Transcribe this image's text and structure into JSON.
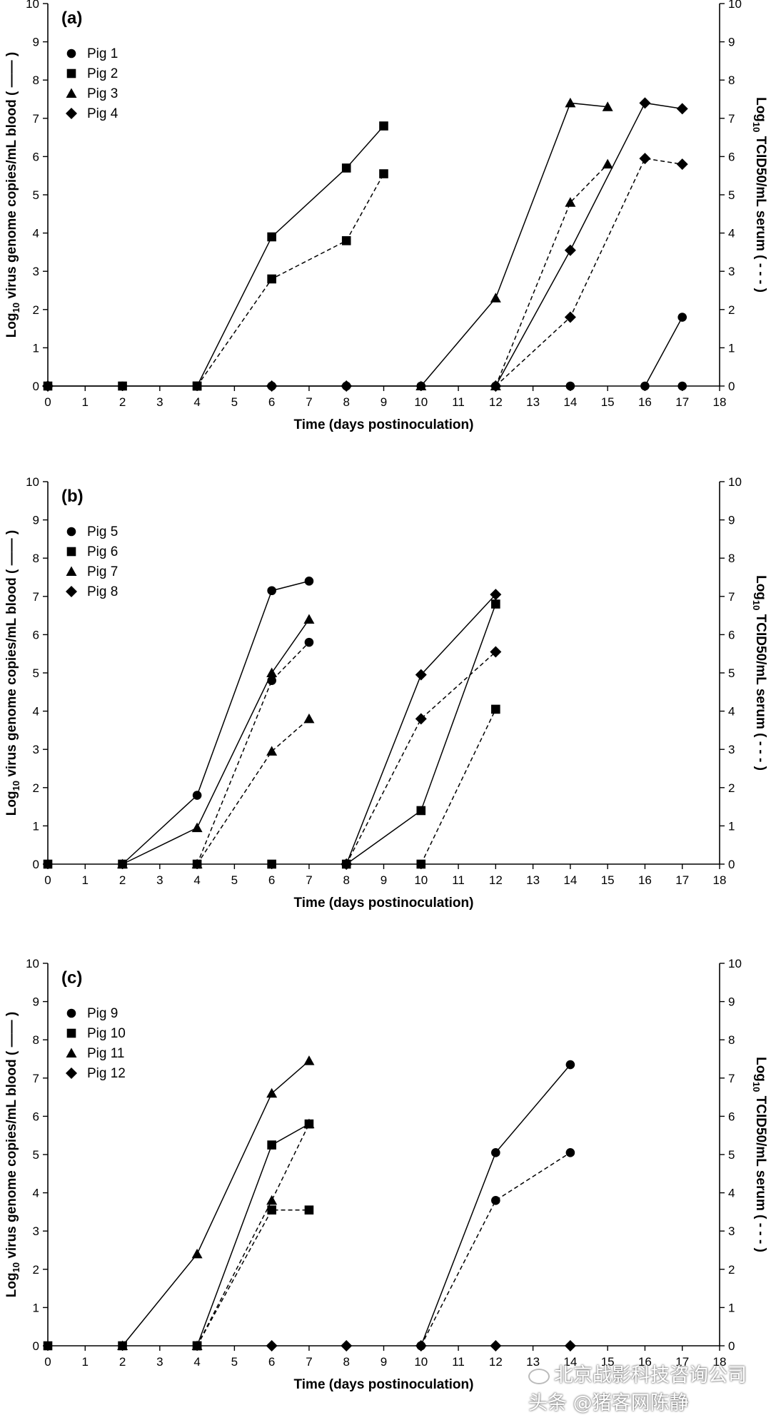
{
  "watermark": {
    "top_text": "北京战影科技咨询公司",
    "bottom_text": "头条 @猪客网陈静"
  },
  "chart_data": [
    {
      "type": "line",
      "panel_label": "(a)",
      "xlabel": "Time (days postinoculation)",
      "ylabel_left_prefix": "Log",
      "ylabel_left_sub": "10",
      "ylabel_left_main": " virus genome copies/mL blood ( —— )",
      "ylabel_right_prefix": "Log",
      "ylabel_right_sub": "10",
      "ylabel_right_main": " TCID50/mL serum ( - - - )",
      "xlim": [
        0,
        18
      ],
      "ylim": [
        0,
        10
      ],
      "xticks": [
        "0",
        "1",
        "2",
        "3",
        "4",
        "5",
        "6",
        "7",
        "8",
        "9",
        "10",
        "11",
        "12",
        "13",
        "14",
        "15",
        "16",
        "17",
        "18"
      ],
      "yticks": [
        "0",
        "1",
        "2",
        "3",
        "4",
        "5",
        "6",
        "7",
        "8",
        "9",
        "10"
      ],
      "legend": [
        {
          "name": "Pig 1",
          "marker": "circle"
        },
        {
          "name": "Pig 2",
          "marker": "square"
        },
        {
          "name": "Pig 3",
          "marker": "triangle"
        },
        {
          "name": "Pig 4",
          "marker": "diamond"
        }
      ],
      "series": [
        {
          "name": "Pig 1",
          "marker": "circle",
          "style": "solid",
          "points": [
            [
              0,
              0
            ],
            [
              2,
              0
            ],
            [
              4,
              0
            ],
            [
              6,
              0
            ],
            [
              8,
              0
            ],
            [
              10,
              0
            ],
            [
              12,
              0
            ],
            [
              14,
              0
            ]
          ]
        },
        {
          "name": "Pig 1",
          "marker": "circle",
          "style": "solid",
          "points": [
            [
              16,
              0
            ],
            [
              17,
              1.8
            ]
          ]
        },
        {
          "name": "Pig 1",
          "marker": "circle",
          "style": "marker-only",
          "points": [
            [
              17,
              0
            ]
          ]
        },
        {
          "name": "Pig 2",
          "marker": "square",
          "style": "solid",
          "points": [
            [
              4,
              0
            ],
            [
              6,
              3.9
            ],
            [
              8,
              5.7
            ],
            [
              9,
              6.8
            ]
          ]
        },
        {
          "name": "Pig 2",
          "marker": "square",
          "style": "dashed",
          "points": [
            [
              4,
              0
            ],
            [
              6,
              2.8
            ],
            [
              8,
              3.8
            ],
            [
              9,
              5.55
            ]
          ]
        },
        {
          "name": "Pig 2",
          "marker": "square",
          "style": "marker-only",
          "points": [
            [
              0,
              0
            ],
            [
              2,
              0
            ]
          ]
        },
        {
          "name": "Pig 3",
          "marker": "triangle",
          "style": "solid",
          "points": [
            [
              10,
              0
            ],
            [
              12,
              2.3
            ],
            [
              14,
              7.4
            ],
            [
              15,
              7.3
            ]
          ]
        },
        {
          "name": "Pig 3",
          "marker": "triangle",
          "style": "dashed",
          "points": [
            [
              12,
              0
            ],
            [
              14,
              4.8
            ],
            [
              15,
              5.8
            ]
          ]
        },
        {
          "name": "Pig 4",
          "marker": "diamond",
          "style": "solid",
          "points": [
            [
              12,
              0
            ],
            [
              14,
              3.55
            ],
            [
              16,
              7.4
            ],
            [
              17,
              7.25
            ]
          ]
        },
        {
          "name": "Pig 4",
          "marker": "diamond",
          "style": "dashed",
          "points": [
            [
              12,
              0
            ],
            [
              14,
              1.8
            ],
            [
              16,
              5.95
            ],
            [
              17,
              5.8
            ]
          ]
        },
        {
          "name": "Pig 4",
          "marker": "diamond",
          "style": "marker-only",
          "points": [
            [
              0,
              0
            ],
            [
              6,
              0
            ],
            [
              8,
              0
            ]
          ]
        }
      ]
    },
    {
      "type": "line",
      "panel_label": "(b)",
      "xlabel": "Time (days postinoculation)",
      "ylabel_left_prefix": "Log",
      "ylabel_left_sub": "10",
      "ylabel_left_main": " virus genome copies/mL blood ( —— )",
      "ylabel_right_prefix": "Log",
      "ylabel_right_sub": "10",
      "ylabel_right_main": " TCID50/mL serum ( - - - )",
      "xlim": [
        0,
        18
      ],
      "ylim": [
        0,
        10
      ],
      "xticks": [
        "0",
        "1",
        "2",
        "3",
        "4",
        "5",
        "6",
        "7",
        "8",
        "9",
        "10",
        "11",
        "12",
        "13",
        "14",
        "15",
        "16",
        "17",
        "18"
      ],
      "yticks": [
        "0",
        "1",
        "2",
        "3",
        "4",
        "5",
        "6",
        "7",
        "8",
        "9",
        "10"
      ],
      "legend": [
        {
          "name": "Pig 5",
          "marker": "circle"
        },
        {
          "name": "Pig 6",
          "marker": "square"
        },
        {
          "name": "Pig 7",
          "marker": "triangle"
        },
        {
          "name": "Pig 8",
          "marker": "diamond"
        }
      ],
      "series": [
        {
          "name": "Pig 5",
          "marker": "circle",
          "style": "solid",
          "points": [
            [
              2,
              0
            ],
            [
              4,
              1.8
            ],
            [
              6,
              7.15
            ],
            [
              7,
              7.4
            ]
          ]
        },
        {
          "name": "Pig 5",
          "marker": "circle",
          "style": "dashed",
          "points": [
            [
              4,
              0
            ],
            [
              6,
              4.8
            ],
            [
              7,
              5.8
            ]
          ]
        },
        {
          "name": "Pig 5",
          "marker": "circle",
          "style": "marker-only",
          "points": [
            [
              0,
              0
            ]
          ]
        },
        {
          "name": "Pig 6",
          "marker": "square",
          "style": "solid",
          "points": [
            [
              8,
              0
            ],
            [
              10,
              1.4
            ],
            [
              12,
              6.8
            ]
          ]
        },
        {
          "name": "Pig 6",
          "marker": "square",
          "style": "dashed",
          "points": [
            [
              10,
              0
            ],
            [
              12,
              4.05
            ]
          ]
        },
        {
          "name": "Pig 6",
          "marker": "square",
          "style": "marker-only",
          "points": [
            [
              0,
              0
            ],
            [
              2,
              0
            ],
            [
              4,
              0
            ],
            [
              6,
              0
            ]
          ]
        },
        {
          "name": "Pig 7",
          "marker": "triangle",
          "style": "solid",
          "points": [
            [
              2,
              0
            ],
            [
              4,
              0.95
            ],
            [
              6,
              5.0
            ],
            [
              7,
              6.4
            ]
          ]
        },
        {
          "name": "Pig 7",
          "marker": "triangle",
          "style": "dashed",
          "points": [
            [
              4,
              0
            ],
            [
              6,
              2.95
            ],
            [
              7,
              3.8
            ]
          ]
        },
        {
          "name": "Pig 8",
          "marker": "diamond",
          "style": "solid",
          "points": [
            [
              8,
              0
            ],
            [
              10,
              4.95
            ],
            [
              12,
              7.05
            ]
          ]
        },
        {
          "name": "Pig 8",
          "marker": "diamond",
          "style": "dashed",
          "points": [
            [
              8,
              0
            ],
            [
              10,
              3.8
            ],
            [
              12,
              5.55
            ]
          ]
        }
      ]
    },
    {
      "type": "line",
      "panel_label": "(c)",
      "xlabel": "Time (days postinoculation)",
      "ylabel_left_prefix": "Log",
      "ylabel_left_sub": "10",
      "ylabel_left_main": " virus genome copies/mL blood ( —— )",
      "ylabel_right_prefix": "Log",
      "ylabel_right_sub": "10",
      "ylabel_right_main": " TCID50/mL serum ( - - - )",
      "xlim": [
        0,
        18
      ],
      "ylim": [
        0,
        10
      ],
      "xticks": [
        "0",
        "1",
        "2",
        "3",
        "4",
        "5",
        "6",
        "7",
        "8",
        "9",
        "10",
        "11",
        "12",
        "13",
        "14",
        "15",
        "16",
        "17",
        "18"
      ],
      "yticks": [
        "0",
        "1",
        "2",
        "3",
        "4",
        "5",
        "6",
        "7",
        "8",
        "9",
        "10"
      ],
      "legend": [
        {
          "name": "Pig 9",
          "marker": "circle"
        },
        {
          "name": "Pig 10",
          "marker": "square"
        },
        {
          "name": "Pig 11",
          "marker": "triangle"
        },
        {
          "name": "Pig 12",
          "marker": "diamond"
        }
      ],
      "series": [
        {
          "name": "Pig 9",
          "marker": "circle",
          "style": "solid",
          "points": [
            [
              10,
              0
            ],
            [
              12,
              5.05
            ],
            [
              14,
              7.35
            ]
          ]
        },
        {
          "name": "Pig 9",
          "marker": "circle",
          "style": "dashed",
          "points": [
            [
              10,
              0
            ],
            [
              12,
              3.8
            ],
            [
              14,
              5.05
            ]
          ]
        },
        {
          "name": "Pig 10",
          "marker": "square",
          "style": "solid",
          "points": [
            [
              4,
              0
            ],
            [
              6,
              5.25
            ],
            [
              7,
              5.8
            ]
          ]
        },
        {
          "name": "Pig 10",
          "marker": "square",
          "style": "dashed",
          "points": [
            [
              4,
              0
            ],
            [
              6,
              3.55
            ],
            [
              7,
              3.55
            ]
          ]
        },
        {
          "name": "Pig 10",
          "marker": "square",
          "style": "marker-only",
          "points": [
            [
              0,
              0
            ],
            [
              2,
              0
            ]
          ]
        },
        {
          "name": "Pig 11",
          "marker": "triangle",
          "style": "solid",
          "points": [
            [
              2,
              0
            ],
            [
              4,
              2.4
            ],
            [
              6,
              6.6
            ],
            [
              7,
              7.45
            ]
          ]
        },
        {
          "name": "Pig 11",
          "marker": "triangle",
          "style": "dashed",
          "points": [
            [
              4,
              0
            ],
            [
              6,
              3.8
            ],
            [
              7,
              5.8
            ]
          ]
        },
        {
          "name": "Pig 12",
          "marker": "diamond",
          "style": "marker-only",
          "points": [
            [
              6,
              0
            ],
            [
              8,
              0
            ],
            [
              10,
              0
            ],
            [
              12,
              0
            ],
            [
              14,
              0
            ]
          ]
        }
      ]
    }
  ]
}
